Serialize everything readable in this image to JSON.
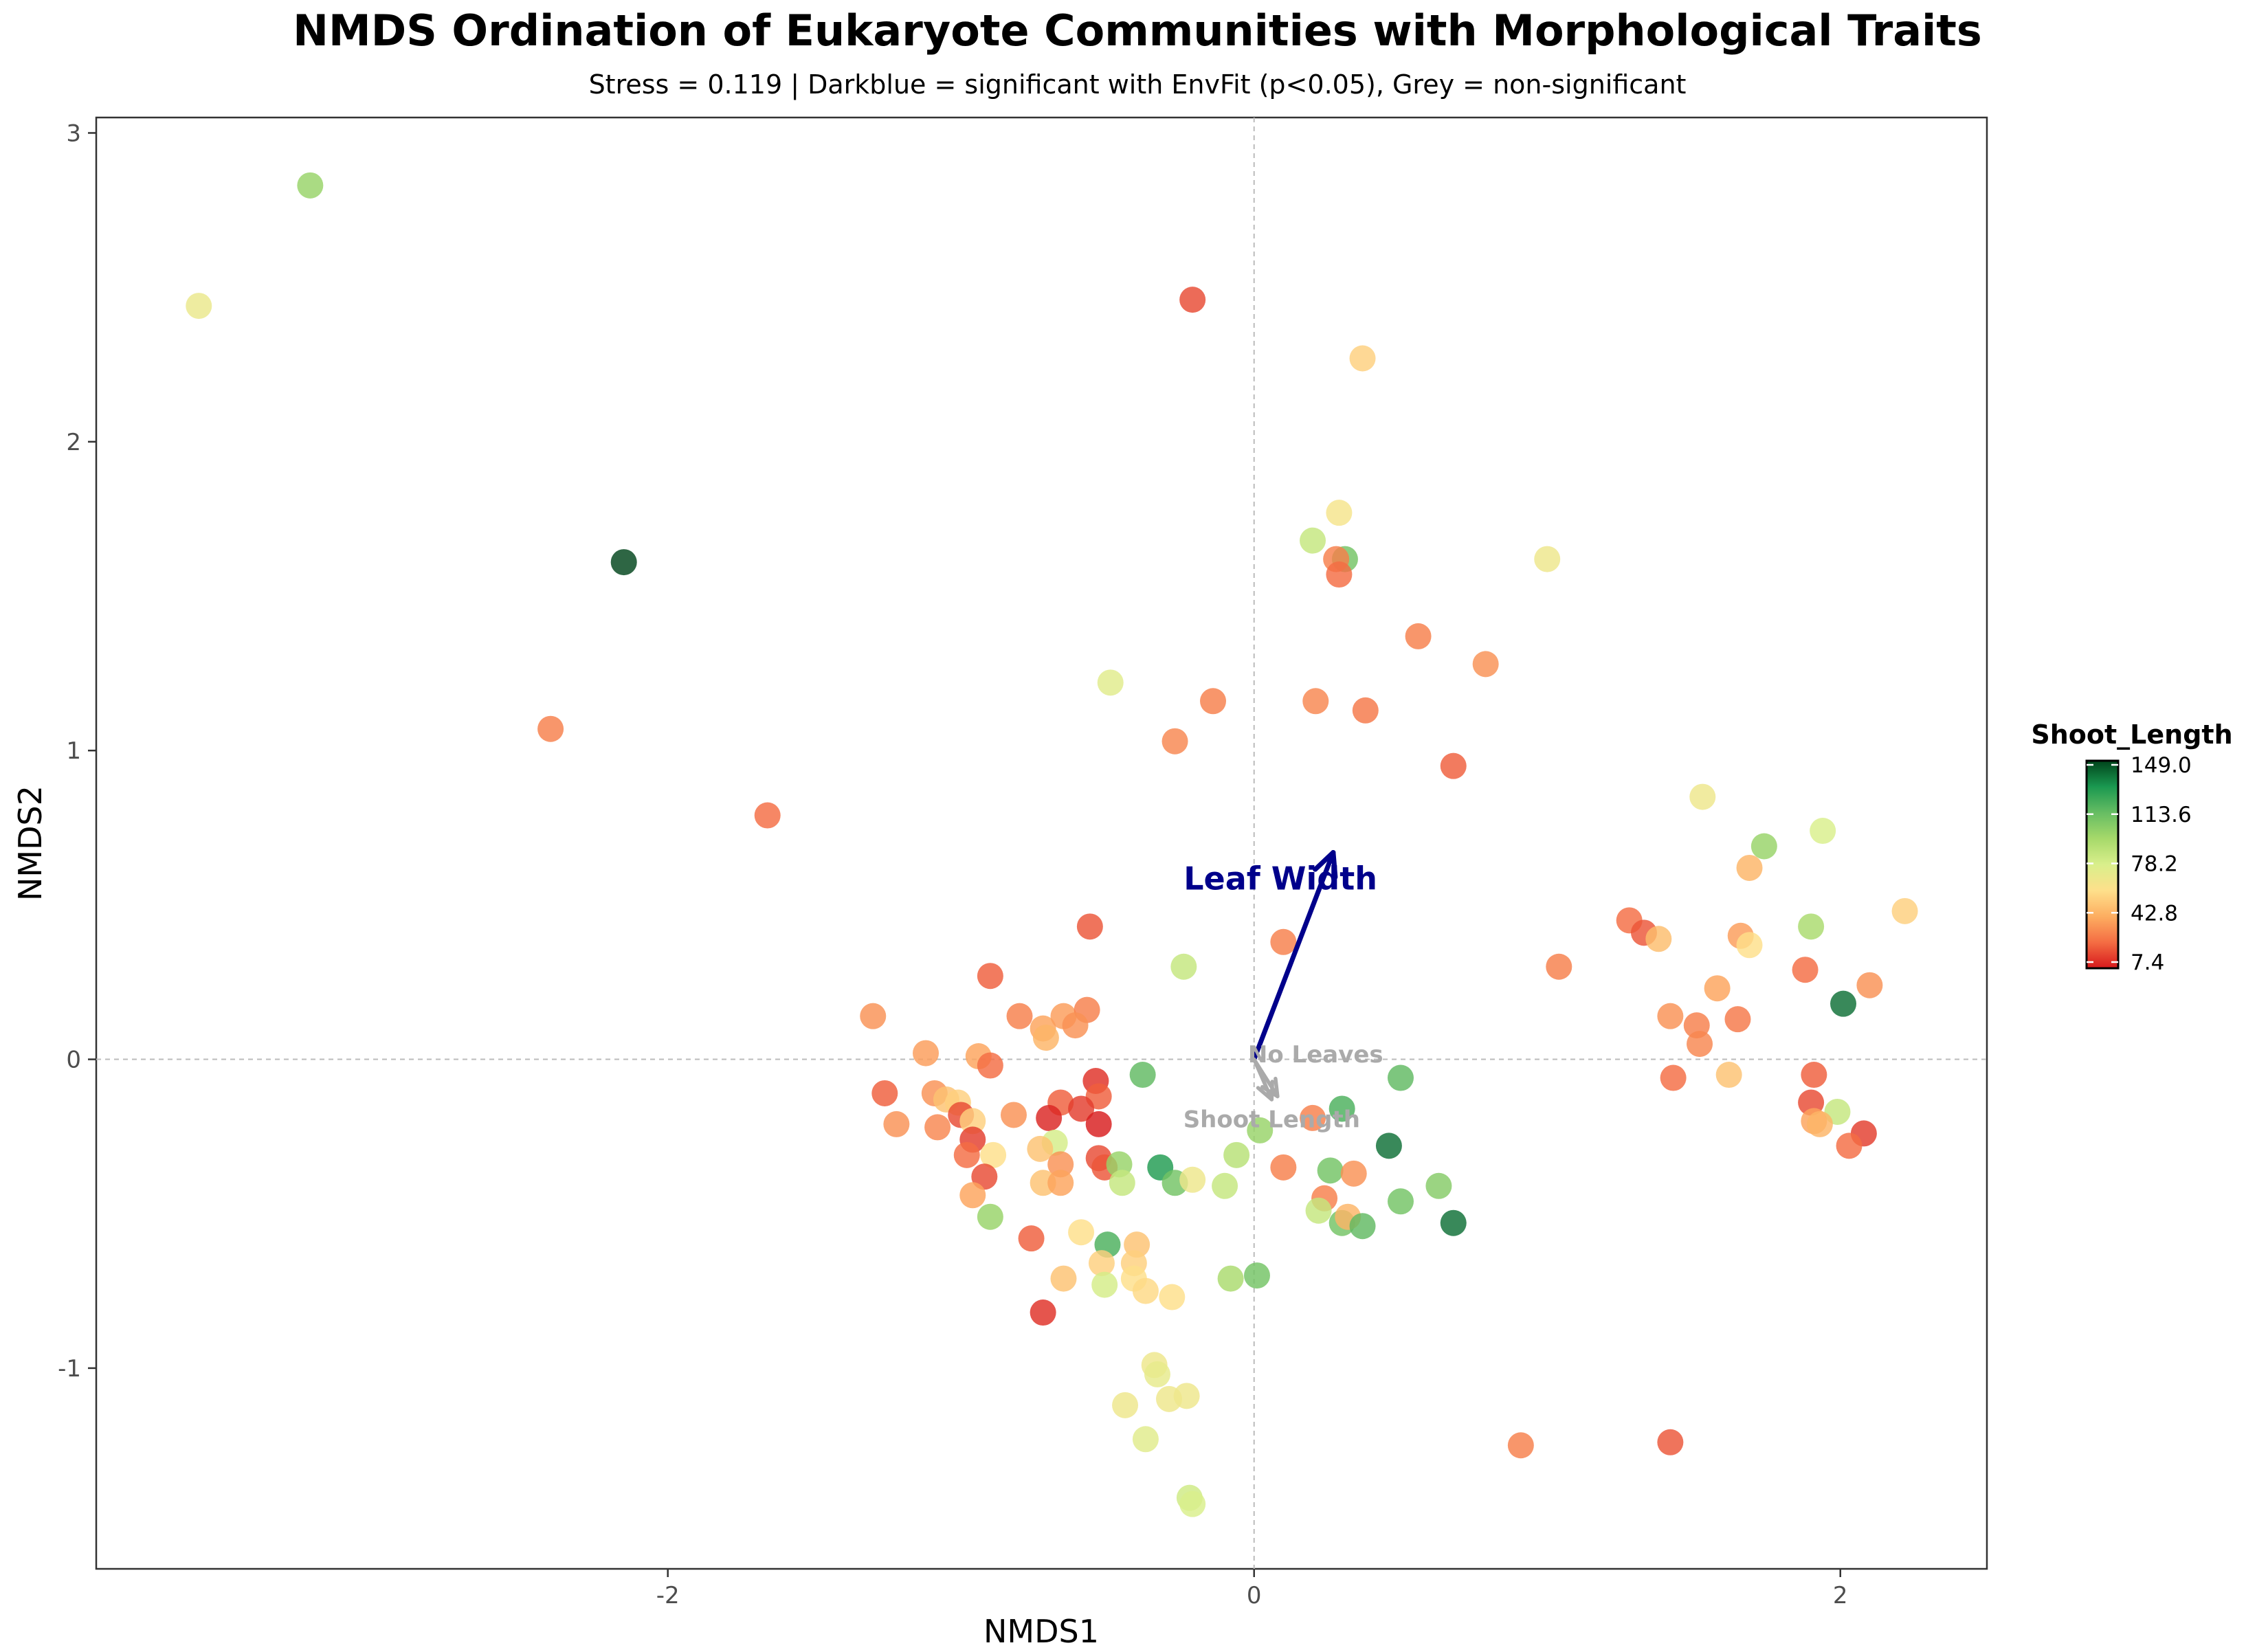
{
  "title": "NMDS Ordination of Eukaryote Communities with Morphological Traits",
  "subtitle": "Stress = 0.119 | Darkblue = significant with EnvFit (p<0.05), Grey = non-significant",
  "chart_data": {
    "type": "scatter",
    "xlabel": "NMDS1",
    "ylabel": "NMDS2",
    "xlim": [
      -3.95,
      2.5
    ],
    "ylim": [
      -1.65,
      3.05
    ],
    "xticks": [
      -2,
      0,
      2
    ],
    "xtick_labels": [
      "-2",
      "0",
      "2"
    ],
    "yticks": [
      -1,
      0,
      1,
      2,
      3
    ],
    "ytick_labels": [
      "-1",
      "0",
      "1",
      "2",
      "3"
    ],
    "reference_lines": {
      "x": 0,
      "y": 0,
      "style": "dotted-grey"
    },
    "grid": false,
    "color_scale": {
      "title": "Shoot_Length",
      "min": 7.4,
      "max": 149.0,
      "ticks": [
        149.0,
        113.6,
        78.2,
        42.8,
        7.4
      ],
      "tick_labels": [
        "149.0",
        "113.6",
        "78.2",
        "42.8",
        "7.4"
      ],
      "palette": [
        "#d7191c",
        "#f46d43",
        "#fdae61",
        "#fee08b",
        "#d9ef8b",
        "#a6d96a",
        "#66bd63",
        "#1a9850",
        "#00441b"
      ]
    },
    "legend_placement": "right",
    "points": [
      [
        -3.6,
        2.44,
        70
      ],
      [
        -3.22,
        2.83,
        100
      ],
      [
        -2.15,
        1.61,
        149
      ],
      [
        -2.4,
        1.07,
        30
      ],
      [
        -1.66,
        0.79,
        25
      ],
      [
        -0.21,
        2.46,
        18
      ],
      [
        0.37,
        2.27,
        55
      ],
      [
        0.29,
        1.77,
        65
      ],
      [
        0.2,
        1.68,
        85
      ],
      [
        0.31,
        1.62,
        110
      ],
      [
        0.28,
        1.62,
        30
      ],
      [
        0.29,
        1.57,
        25
      ],
      [
        1.0,
        1.62,
        68
      ],
      [
        0.56,
        1.37,
        30
      ],
      [
        0.79,
        1.28,
        35
      ],
      [
        0.21,
        1.16,
        32
      ],
      [
        0.38,
        1.13,
        28
      ],
      [
        -0.14,
        1.16,
        30
      ],
      [
        -0.27,
        1.03,
        32
      ],
      [
        -0.49,
        1.22,
        75
      ],
      [
        0.68,
        0.95,
        22
      ],
      [
        1.53,
        0.85,
        68
      ],
      [
        1.94,
        0.74,
        78
      ],
      [
        1.74,
        0.69,
        100
      ],
      [
        1.69,
        0.62,
        45
      ],
      [
        2.22,
        0.48,
        55
      ],
      [
        1.9,
        0.43,
        95
      ],
      [
        1.28,
        0.45,
        25
      ],
      [
        1.33,
        0.41,
        20
      ],
      [
        1.38,
        0.39,
        48
      ],
      [
        1.66,
        0.4,
        38
      ],
      [
        1.69,
        0.37,
        60
      ],
      [
        1.88,
        0.29,
        25
      ],
      [
        2.1,
        0.24,
        35
      ],
      [
        2.01,
        0.18,
        140
      ],
      [
        1.04,
        0.3,
        30
      ],
      [
        1.58,
        0.23,
        40
      ],
      [
        1.42,
        0.14,
        35
      ],
      [
        1.51,
        0.11,
        30
      ],
      [
        1.65,
        0.13,
        28
      ],
      [
        1.52,
        0.05,
        32
      ],
      [
        1.43,
        -0.06,
        25
      ],
      [
        1.62,
        -0.05,
        50
      ],
      [
        1.91,
        -0.05,
        22
      ],
      [
        1.9,
        -0.14,
        18
      ],
      [
        1.99,
        -0.17,
        85
      ],
      [
        1.91,
        -0.2,
        40
      ],
      [
        1.93,
        -0.21,
        45
      ],
      [
        2.08,
        -0.24,
        15
      ],
      [
        2.03,
        -0.28,
        25
      ],
      [
        0.91,
        -1.25,
        30
      ],
      [
        1.42,
        -1.24,
        20
      ],
      [
        0.1,
        0.38,
        30
      ],
      [
        -0.56,
        0.43,
        20
      ],
      [
        -0.9,
        0.27,
        22
      ],
      [
        -1.3,
        0.14,
        35
      ],
      [
        -0.8,
        0.14,
        30
      ],
      [
        -0.72,
        0.1,
        40
      ],
      [
        -0.65,
        0.14,
        38
      ],
      [
        -0.57,
        0.16,
        30
      ],
      [
        -0.61,
        0.11,
        35
      ],
      [
        -0.71,
        0.07,
        45
      ],
      [
        -0.94,
        0.01,
        40
      ],
      [
        -0.9,
        -0.02,
        25
      ],
      [
        -1.12,
        0.02,
        38
      ],
      [
        -1.26,
        -0.11,
        22
      ],
      [
        -1.09,
        -0.11,
        35
      ],
      [
        -1.05,
        -0.13,
        50
      ],
      [
        -1.01,
        -0.14,
        55
      ],
      [
        -1.0,
        -0.18,
        18
      ],
      [
        -1.22,
        -0.21,
        35
      ],
      [
        -1.08,
        -0.22,
        32
      ],
      [
        -0.96,
        -0.2,
        55
      ],
      [
        -0.82,
        -0.18,
        35
      ],
      [
        -0.96,
        -0.26,
        15
      ],
      [
        -0.89,
        -0.31,
        60
      ],
      [
        -0.98,
        -0.31,
        25
      ],
      [
        -0.92,
        -0.38,
        18
      ],
      [
        -0.96,
        -0.44,
        40
      ],
      [
        -0.9,
        -0.51,
        100
      ],
      [
        -0.76,
        -0.58,
        22
      ],
      [
        -0.72,
        -0.82,
        12
      ],
      [
        -0.54,
        -0.07,
        12
      ],
      [
        -0.53,
        -0.12,
        22
      ],
      [
        -0.66,
        -0.14,
        22
      ],
      [
        -0.59,
        -0.16,
        15
      ],
      [
        -0.7,
        -0.19,
        10
      ],
      [
        -0.53,
        -0.21,
        8
      ],
      [
        -0.68,
        -0.27,
        80
      ],
      [
        -0.73,
        -0.29,
        50
      ],
      [
        -0.66,
        -0.34,
        35
      ],
      [
        -0.53,
        -0.32,
        18
      ],
      [
        -0.51,
        -0.35,
        20
      ],
      [
        -0.46,
        -0.34,
        100
      ],
      [
        -0.45,
        -0.4,
        85
      ],
      [
        -0.72,
        -0.4,
        50
      ],
      [
        -0.66,
        -0.4,
        40
      ],
      [
        -0.59,
        -0.56,
        60
      ],
      [
        -0.5,
        -0.6,
        120
      ],
      [
        -0.52,
        -0.66,
        55
      ],
      [
        -0.51,
        -0.73,
        80
      ],
      [
        -0.65,
        -0.71,
        50
      ],
      [
        -0.4,
        -0.6,
        50
      ],
      [
        -0.41,
        -0.66,
        55
      ],
      [
        -0.41,
        -0.71,
        60
      ],
      [
        -0.37,
        -0.75,
        58
      ],
      [
        -0.28,
        -0.77,
        60
      ],
      [
        -0.38,
        -0.05,
        115
      ],
      [
        -0.24,
        0.3,
        85
      ],
      [
        -0.32,
        -0.35,
        130
      ],
      [
        -0.27,
        -0.4,
        110
      ],
      [
        -0.21,
        -0.39,
        68
      ],
      [
        -0.1,
        -0.41,
        85
      ],
      [
        -0.06,
        -0.31,
        90
      ],
      [
        0.02,
        -0.23,
        100
      ],
      [
        0.2,
        -0.19,
        30
      ],
      [
        0.1,
        -0.35,
        30
      ],
      [
        0.26,
        -0.36,
        110
      ],
      [
        0.3,
        -0.16,
        120
      ],
      [
        0.34,
        -0.37,
        35
      ],
      [
        0.46,
        -0.28,
        140
      ],
      [
        0.5,
        -0.06,
        115
      ],
      [
        0.24,
        -0.45,
        30
      ],
      [
        0.22,
        -0.49,
        85
      ],
      [
        0.3,
        -0.53,
        110
      ],
      [
        0.32,
        -0.51,
        45
      ],
      [
        0.37,
        -0.54,
        115
      ],
      [
        0.5,
        -0.46,
        110
      ],
      [
        0.63,
        -0.41,
        105
      ],
      [
        0.68,
        -0.53,
        140
      ],
      [
        -0.08,
        -0.71,
        95
      ],
      [
        0.01,
        -0.7,
        110
      ],
      [
        -0.34,
        -0.99,
        68
      ],
      [
        -0.33,
        -1.02,
        72
      ],
      [
        -0.29,
        -1.1,
        68
      ],
      [
        -0.44,
        -1.12,
        68
      ],
      [
        -0.23,
        -1.09,
        68
      ],
      [
        -0.37,
        -1.23,
        75
      ],
      [
        -0.22,
        -1.42,
        82
      ],
      [
        -0.21,
        -1.44,
        78
      ]
    ],
    "vectors": [
      {
        "label": "Leaf Width",
        "dx": 0.27,
        "dy": 0.67,
        "significant": true,
        "color": "#00008b",
        "label_x": 0.09,
        "label_y": 0.55
      },
      {
        "label": "No Leaves",
        "dx": 0.08,
        "dy": -0.12,
        "significant": false,
        "color": "#aaaaaa",
        "label_x": 0.21,
        "label_y": -0.01
      },
      {
        "label": "Shoot Length",
        "dx": 0.06,
        "dy": -0.13,
        "significant": false,
        "color": "#aaaaaa",
        "label_x": 0.06,
        "label_y": -0.22
      }
    ]
  }
}
